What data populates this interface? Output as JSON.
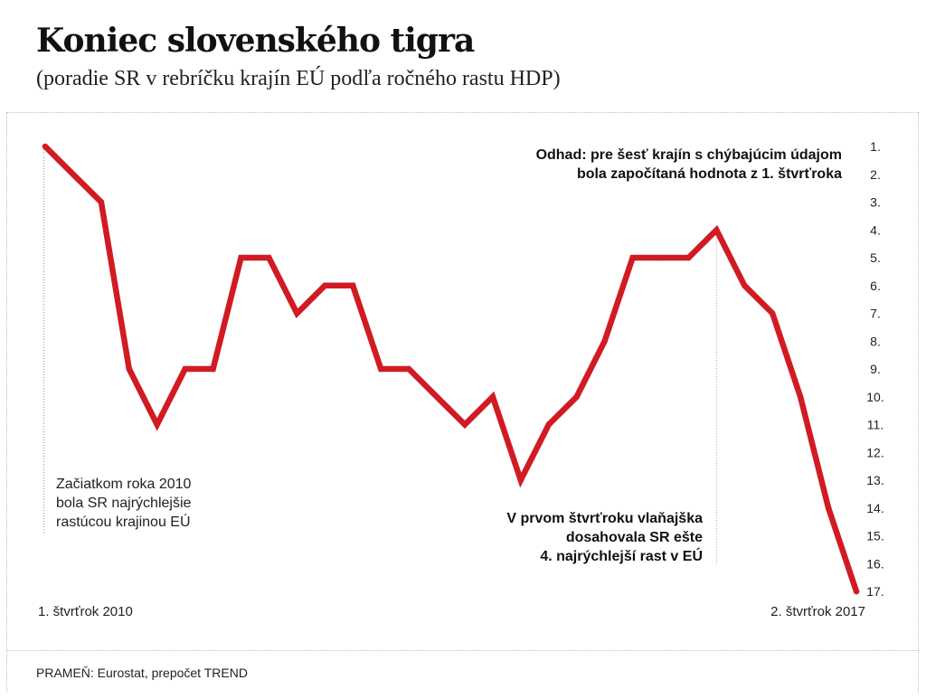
{
  "header": {
    "title": "Koniec slovenského tigra",
    "subtitle": "(poradie SR v rebríčku krajín EÚ podľa ročného rastu HDP)"
  },
  "footer": {
    "source": "PRAMEŇ: Eurostat, prepočet TREND"
  },
  "colors": {
    "line": "#d11b23",
    "text": "#222222",
    "guide": "#9a9a9a"
  },
  "chart_data": {
    "type": "line",
    "title": "Koniec slovenského tigra",
    "subtitle": "(poradie SR v rebríčku krajín EÚ podľa ročného rastu HDP)",
    "xlabel": "",
    "ylabel": "",
    "y_axis_inverted": true,
    "y_axis_side": "right",
    "ylim": [
      1,
      17
    ],
    "yticks": [
      "1.",
      "2.",
      "3.",
      "4.",
      "5.",
      "6.",
      "7.",
      "8.",
      "9.",
      "10.",
      "11.",
      "12.",
      "13.",
      "14.",
      "15.",
      "16.",
      "17."
    ],
    "grid": false,
    "x_start_label": "1. štvrťrok 2010",
    "x_end_label": "2. štvrťrok 2017",
    "values": [
      1,
      2,
      3,
      9,
      11,
      9,
      9,
      5,
      5,
      7,
      6,
      6,
      9,
      9,
      10,
      11,
      10,
      13,
      11,
      10,
      8,
      5,
      5,
      5,
      4,
      6,
      7,
      10,
      14,
      17
    ],
    "annotations": [
      {
        "lines": [
          "Začiatkom roka 2010",
          "bola SR najrýchlejšie",
          "rastúcou krajinou EÚ"
        ],
        "point_index": 0,
        "bold": false,
        "align": "left"
      },
      {
        "lines": [
          "V prvom štvrťroku vlaňajška",
          "dosahovala SR ešte",
          "4. najrýchlejší rast v EÚ"
        ],
        "point_index": 24,
        "bold": true,
        "align": "right"
      },
      {
        "lines": [
          "Odhad: pre šesť krajín s chýbajúcim údajom",
          "bola započítaná hodnota z 1. štvrťroka"
        ],
        "point_index": null,
        "bold": true,
        "align": "right"
      }
    ]
  }
}
